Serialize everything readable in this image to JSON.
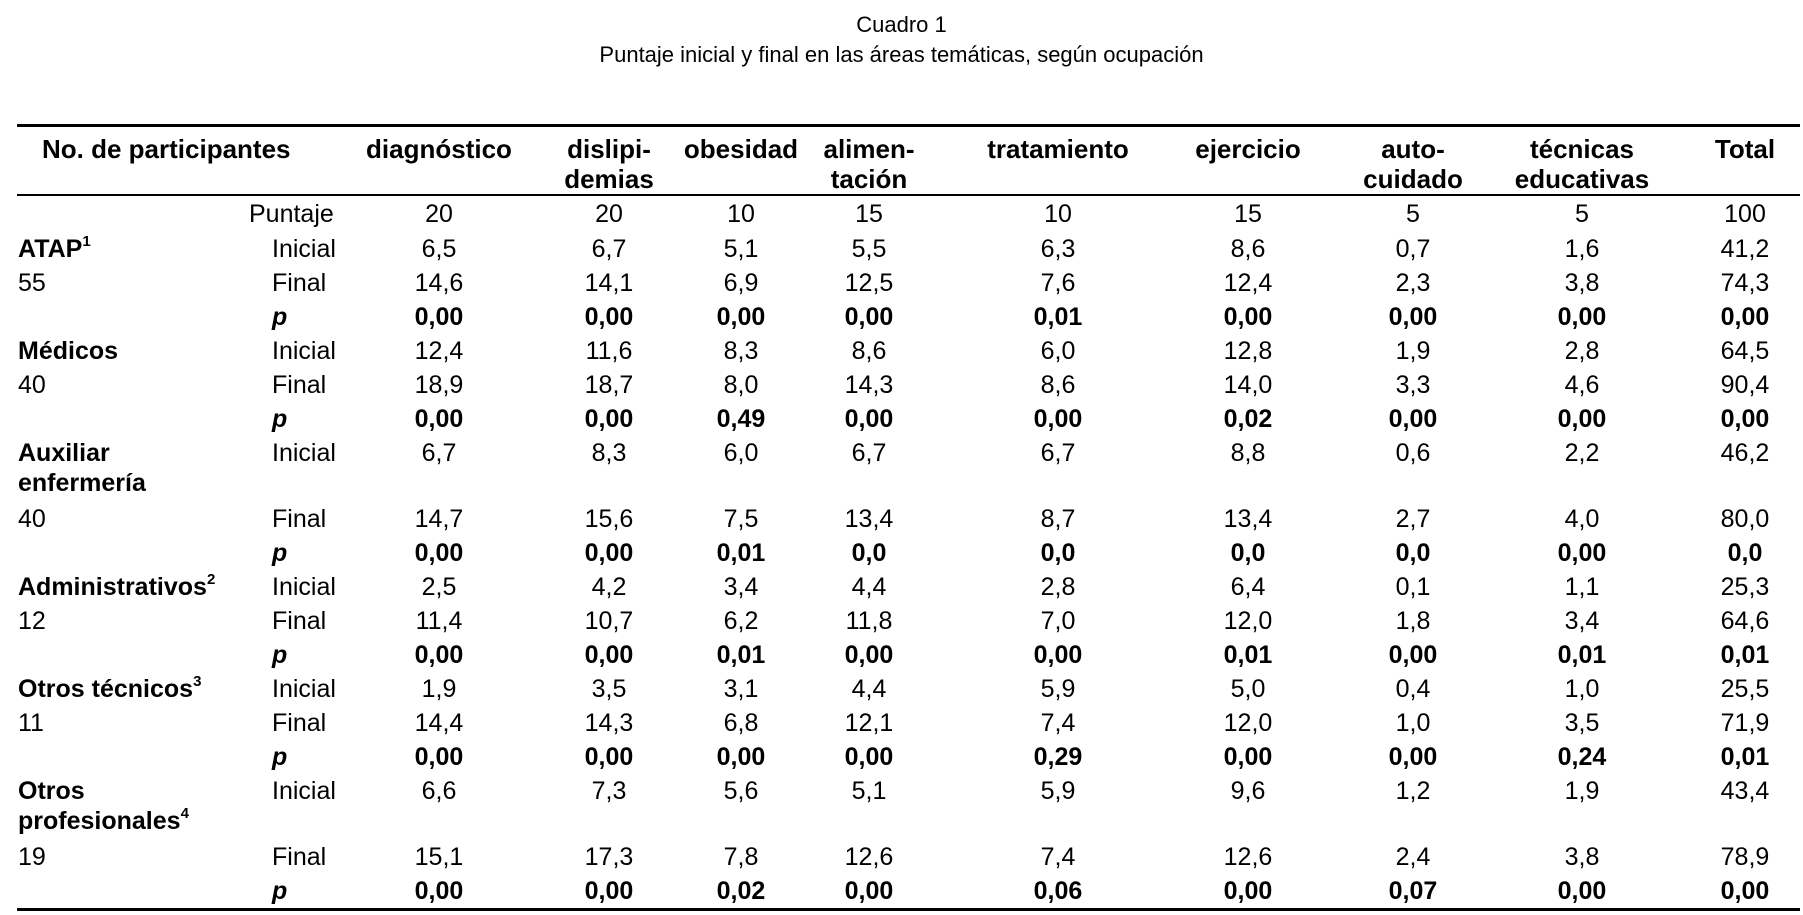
{
  "caption": {
    "number": "Cuadro 1",
    "title": "Puntaje inicial y final en las áreas temáticas, según ocupación"
  },
  "header": {
    "participants": "No. de participantes",
    "columns": [
      [
        "diagnóstico"
      ],
      [
        "dislipi-",
        "demias"
      ],
      [
        "obesidad"
      ],
      [
        "alimen-",
        "tación"
      ],
      [
        "tratamiento"
      ],
      [
        "ejercicio"
      ],
      [
        "auto-",
        "cuidado"
      ],
      [
        "técnicas",
        "educativas"
      ],
      [
        "Total"
      ]
    ]
  },
  "puntaje": {
    "label": "Puntaje",
    "values": [
      "20",
      "20",
      "10",
      "15",
      "10",
      "15",
      "5",
      "5",
      "100"
    ]
  },
  "groups": [
    {
      "name": "ATAP",
      "sup": "1",
      "n": "55",
      "rows": [
        {
          "label": "Inicial",
          "values": [
            "6,5",
            "6,7",
            "5,1",
            "5,5",
            "6,3",
            "8,6",
            "0,7",
            "1,6",
            "41,2"
          ]
        },
        {
          "label": "Final",
          "values": [
            "14,6",
            "14,1",
            "6,9",
            "12,5",
            "7,6",
            "12,4",
            "2,3",
            "3,8",
            "74,3"
          ]
        },
        {
          "label": "p",
          "values": [
            "0,00",
            "0,00",
            "0,00",
            "0,00",
            "0,01",
            "0,00",
            "0,00",
            "0,00",
            "0,00"
          ]
        }
      ]
    },
    {
      "name": "Médicos",
      "sup": "",
      "n": "40",
      "rows": [
        {
          "label": "Inicial",
          "values": [
            "12,4",
            "11,6",
            "8,3",
            "8,6",
            "6,0",
            "12,8",
            "1,9",
            "2,8",
            "64,5"
          ]
        },
        {
          "label": "Final",
          "values": [
            "18,9",
            "18,7",
            "8,0",
            "14,3",
            "8,6",
            "14,0",
            "3,3",
            "4,6",
            "90,4"
          ]
        },
        {
          "label": "p",
          "values": [
            "0,00",
            "0,00",
            "0,49",
            "0,00",
            "0,00",
            "0,02",
            "0,00",
            "0,00",
            "0,00"
          ]
        }
      ]
    },
    {
      "name": "Auxiliar enfermería",
      "name_lines": [
        "Auxiliar",
        "enfermería"
      ],
      "sup": "",
      "n": "40",
      "rows": [
        {
          "label": "Inicial",
          "values": [
            "6,7",
            "8,3",
            "6,0",
            "6,7",
            "6,7",
            "8,8",
            "0,6",
            "2,2",
            "46,2"
          ]
        },
        {
          "label": "Final",
          "values": [
            "14,7",
            "15,6",
            "7,5",
            "13,4",
            "8,7",
            "13,4",
            "2,7",
            "4,0",
            "80,0"
          ]
        },
        {
          "label": "p",
          "values": [
            "0,00",
            "0,00",
            "0,01",
            "0,0",
            "0,0",
            "0,0",
            "0,0",
            "0,00",
            "0,0"
          ]
        }
      ]
    },
    {
      "name": "Administrativos",
      "sup": "2",
      "n": "12",
      "rows": [
        {
          "label": "Inicial",
          "values": [
            "2,5",
            "4,2",
            "3,4",
            "4,4",
            "2,8",
            "6,4",
            "0,1",
            "1,1",
            "25,3"
          ]
        },
        {
          "label": "Final",
          "values": [
            "11,4",
            "10,7",
            "6,2",
            "11,8",
            "7,0",
            "12,0",
            "1,8",
            "3,4",
            "64,6"
          ]
        },
        {
          "label": "p",
          "values": [
            "0,00",
            "0,00",
            "0,01",
            "0,00",
            "0,00",
            "0,01",
            "0,00",
            "0,01",
            "0,01"
          ]
        }
      ]
    },
    {
      "name": "Otros técnicos",
      "sup": "3",
      "n": "11",
      "rows": [
        {
          "label": "Inicial",
          "values": [
            "1,9",
            "3,5",
            "3,1",
            "4,4",
            "5,9",
            "5,0",
            "0,4",
            "1,0",
            "25,5"
          ]
        },
        {
          "label": "Final",
          "values": [
            "14,4",
            "14,3",
            "6,8",
            "12,1",
            "7,4",
            "12,0",
            "1,0",
            "3,5",
            "71,9"
          ]
        },
        {
          "label": "p",
          "values": [
            "0,00",
            "0,00",
            "0,00",
            "0,00",
            "0,29",
            "0,00",
            "0,00",
            "0,24",
            "0,01"
          ]
        }
      ]
    },
    {
      "name": "Otros profesionales",
      "name_lines": [
        "Otros",
        "profesionales"
      ],
      "sup": "4",
      "n": "19",
      "rows": [
        {
          "label": "Inicial",
          "values": [
            "6,6",
            "7,3",
            "5,6",
            "5,1",
            "5,9",
            "9,6",
            "1,2",
            "1,9",
            "43,4"
          ]
        },
        {
          "label": "Final",
          "values": [
            "15,1",
            "17,3",
            "7,8",
            "12,6",
            "7,4",
            "12,6",
            "2,4",
            "3,8",
            "78,9"
          ]
        },
        {
          "label": "p",
          "values": [
            "0,00",
            "0,00",
            "0,02",
            "0,00",
            "0,06",
            "0,00",
            "0,07",
            "0,00",
            "0,00"
          ]
        }
      ]
    }
  ]
}
